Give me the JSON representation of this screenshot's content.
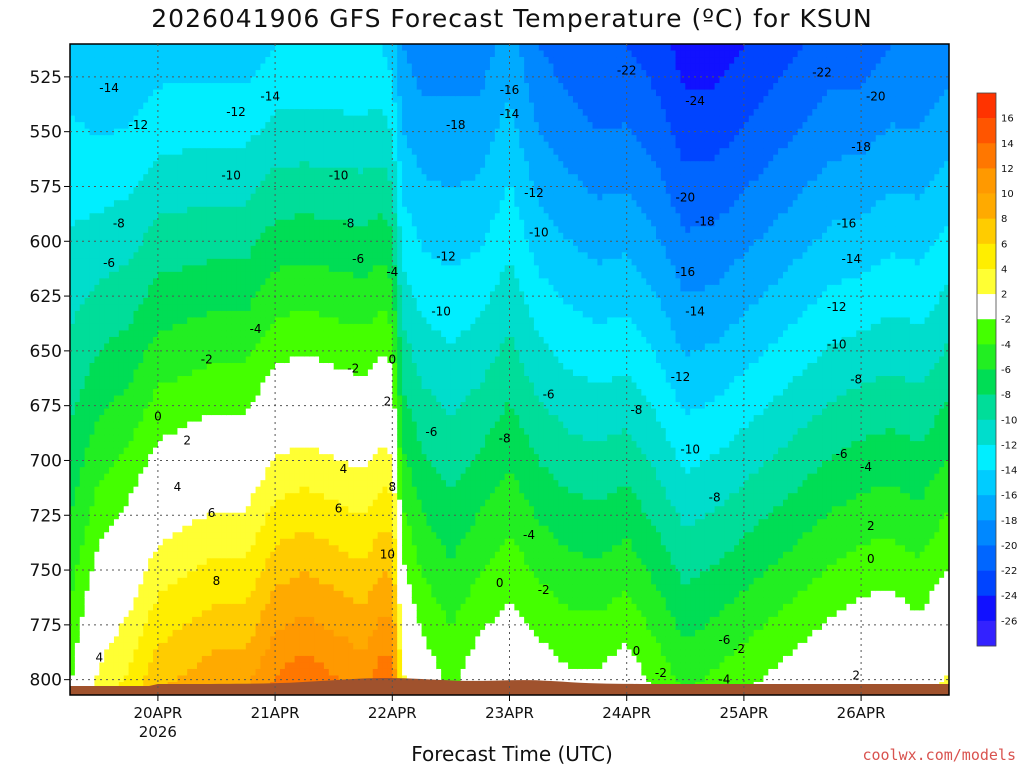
{
  "chart_data": {
    "type": "heatmap",
    "title": "2026041906 GFS Forecast Temperature (ºC) for KSUN",
    "xlabel": "Forecast Time (UTC)",
    "ylabel": "",
    "credit": "coolwx.com/models",
    "x_ticks": [
      {
        "t": 24,
        "label": "20APR",
        "sub": "2026"
      },
      {
        "t": 48,
        "label": "21APR",
        "sub": ""
      },
      {
        "t": 72,
        "label": "22APR",
        "sub": ""
      },
      {
        "t": 96,
        "label": "23APR",
        "sub": ""
      },
      {
        "t": 120,
        "label": "24APR",
        "sub": ""
      },
      {
        "t": 144,
        "label": "25APR",
        "sub": ""
      },
      {
        "t": 168,
        "label": "26APR",
        "sub": ""
      }
    ],
    "xlim_hours_from_2026041900": [
      6,
      186
    ],
    "y_ticks": [
      525,
      550,
      575,
      600,
      625,
      650,
      675,
      700,
      725,
      750,
      775,
      800
    ],
    "ylim_hpa": [
      807,
      510
    ],
    "colorbar": {
      "levels": [
        16,
        14,
        12,
        10,
        8,
        6,
        4,
        2,
        -2,
        -4,
        -6,
        -8,
        -10,
        -12,
        -14,
        -16,
        -18,
        -20,
        -22,
        -24,
        -26
      ],
      "colors": [
        "#ff3300",
        "#ff5500",
        "#ff7700",
        "#ff9900",
        "#ffaa00",
        "#ffcc00",
        "#ffee00",
        "#ffff33",
        "#ffffff",
        "#44ff00",
        "#22ee22",
        "#00dd55",
        "#00dd99",
        "#00ddcc",
        "#00eeff",
        "#00ccff",
        "#00aaff",
        "#0088ff",
        "#0066ff",
        "#0044ff",
        "#1111ff",
        "#3322ff"
      ]
    },
    "profiles": [
      {
        "t": 6,
        "top": -15,
        "bottom": -2
      },
      {
        "t": 12,
        "top": -16,
        "bottom": 3
      },
      {
        "t": 18,
        "top": -16,
        "bottom": 5
      },
      {
        "t": 24,
        "top": -15,
        "bottom": 8
      },
      {
        "t": 30,
        "top": -15,
        "bottom": 9
      },
      {
        "t": 36,
        "top": -15,
        "bottom": 10
      },
      {
        "t": 42,
        "top": -15,
        "bottom": 10
      },
      {
        "t": 48,
        "top": -14,
        "bottom": 13
      },
      {
        "t": 54,
        "top": -14,
        "bottom": 14
      },
      {
        "t": 60,
        "top": -14,
        "bottom": 13
      },
      {
        "t": 66,
        "top": -14,
        "bottom": 12
      },
      {
        "t": 70,
        "top": -14,
        "bottom": 14
      },
      {
        "t": 72,
        "top": -15,
        "bottom": 14
      },
      {
        "t": 74,
        "top": -18,
        "bottom": 3
      },
      {
        "t": 78,
        "top": -19,
        "bottom": 0
      },
      {
        "t": 84,
        "top": -19,
        "bottom": -2
      },
      {
        "t": 90,
        "top": -19,
        "bottom": 0
      },
      {
        "t": 96,
        "top": -17,
        "bottom": 1
      },
      {
        "t": 102,
        "top": -20,
        "bottom": 0
      },
      {
        "t": 108,
        "top": -21,
        "bottom": -1
      },
      {
        "t": 114,
        "top": -22,
        "bottom": -1
      },
      {
        "t": 120,
        "top": -22,
        "bottom": 0
      },
      {
        "t": 126,
        "top": -23,
        "bottom": -2
      },
      {
        "t": 132,
        "top": -25,
        "bottom": -4
      },
      {
        "t": 138,
        "top": -25,
        "bottom": -3
      },
      {
        "t": 144,
        "top": -24,
        "bottom": -2
      },
      {
        "t": 150,
        "top": -23,
        "bottom": -1
      },
      {
        "t": 156,
        "top": -22,
        "bottom": 0
      },
      {
        "t": 162,
        "top": -21,
        "bottom": 1
      },
      {
        "t": 168,
        "top": -21,
        "bottom": 2
      },
      {
        "t": 174,
        "top": -20,
        "bottom": 2
      },
      {
        "t": 180,
        "top": -20,
        "bottom": 1
      },
      {
        "t": 186,
        "top": -19,
        "bottom": 3
      }
    ],
    "contour_labels": [
      {
        "t": 14,
        "p": 530,
        "v": "-14"
      },
      {
        "t": 47,
        "p": 534,
        "v": "-14"
      },
      {
        "t": 20,
        "p": 547,
        "v": "-12"
      },
      {
        "t": 39,
        "p": 570,
        "v": "-10"
      },
      {
        "t": 16,
        "p": 592,
        "v": "-8"
      },
      {
        "t": 14,
        "p": 610,
        "v": "-6"
      },
      {
        "t": 40,
        "p": 541,
        "v": "-12"
      },
      {
        "t": 61,
        "p": 570,
        "v": "-10"
      },
      {
        "t": 63,
        "p": 592,
        "v": "-8"
      },
      {
        "t": 65,
        "p": 608,
        "v": "-6"
      },
      {
        "t": 72,
        "p": 614,
        "v": "-4"
      },
      {
        "t": 44,
        "p": 640,
        "v": "-4"
      },
      {
        "t": 34,
        "p": 654,
        "v": "-2"
      },
      {
        "t": 64,
        "p": 658,
        "v": "-2"
      },
      {
        "t": 72,
        "p": 654,
        "v": "0"
      },
      {
        "t": 24,
        "p": 680,
        "v": "0"
      },
      {
        "t": 30,
        "p": 691,
        "v": "2"
      },
      {
        "t": 71,
        "p": 673,
        "v": "2"
      },
      {
        "t": 28,
        "p": 712,
        "v": "4"
      },
      {
        "t": 62,
        "p": 704,
        "v": "4"
      },
      {
        "t": 35,
        "p": 724,
        "v": "6"
      },
      {
        "t": 61,
        "p": 722,
        "v": "6"
      },
      {
        "t": 36,
        "p": 755,
        "v": "8"
      },
      {
        "t": 72,
        "p": 712,
        "v": "8"
      },
      {
        "t": 71,
        "p": 743,
        "v": "10"
      },
      {
        "t": 12,
        "p": 790,
        "v": "4"
      },
      {
        "t": 96,
        "p": 531,
        "v": "-16"
      },
      {
        "t": 96,
        "p": 542,
        "v": "-14"
      },
      {
        "t": 85,
        "p": 547,
        "v": "-18"
      },
      {
        "t": 101,
        "p": 578,
        "v": "-12"
      },
      {
        "t": 102,
        "p": 596,
        "v": "-10"
      },
      {
        "t": 83,
        "p": 607,
        "v": "-12"
      },
      {
        "t": 82,
        "p": 632,
        "v": "-10"
      },
      {
        "t": 80,
        "p": 687,
        "v": "-6"
      },
      {
        "t": 95,
        "p": 690,
        "v": "-8"
      },
      {
        "t": 104,
        "p": 670,
        "v": "-6"
      },
      {
        "t": 100,
        "p": 734,
        "v": "-4"
      },
      {
        "t": 103,
        "p": 759,
        "v": "-2"
      },
      {
        "t": 94,
        "p": 756,
        "v": "0"
      },
      {
        "t": 120,
        "p": 522,
        "v": "-22"
      },
      {
        "t": 134,
        "p": 536,
        "v": "-24"
      },
      {
        "t": 160,
        "p": 523,
        "v": "-22"
      },
      {
        "t": 171,
        "p": 534,
        "v": "-20"
      },
      {
        "t": 168,
        "p": 557,
        "v": "-18"
      },
      {
        "t": 132,
        "p": 580,
        "v": "-20"
      },
      {
        "t": 136,
        "p": 591,
        "v": "-18"
      },
      {
        "t": 132,
        "p": 614,
        "v": "-16"
      },
      {
        "t": 134,
        "p": 632,
        "v": "-14"
      },
      {
        "t": 131,
        "p": 662,
        "v": "-12"
      },
      {
        "t": 165,
        "p": 592,
        "v": "-16"
      },
      {
        "t": 166,
        "p": 608,
        "v": "-14"
      },
      {
        "t": 163,
        "p": 630,
        "v": "-12"
      },
      {
        "t": 163,
        "p": 647,
        "v": "-10"
      },
      {
        "t": 167,
        "p": 663,
        "v": "-8"
      },
      {
        "t": 122,
        "p": 677,
        "v": "-8"
      },
      {
        "t": 133,
        "p": 695,
        "v": "-10"
      },
      {
        "t": 138,
        "p": 717,
        "v": "-8"
      },
      {
        "t": 164,
        "p": 697,
        "v": "-6"
      },
      {
        "t": 169,
        "p": 703,
        "v": "-4"
      },
      {
        "t": 170,
        "p": 730,
        "v": "2"
      },
      {
        "t": 170,
        "p": 745,
        "v": "0"
      },
      {
        "t": 140,
        "p": 782,
        "v": "-6"
      },
      {
        "t": 143,
        "p": 786,
        "v": "-2"
      },
      {
        "t": 140,
        "p": 800,
        "v": "-4"
      },
      {
        "t": 122,
        "p": 787,
        "v": "0"
      },
      {
        "t": 127,
        "p": 797,
        "v": "-2"
      },
      {
        "t": 167,
        "p": 798,
        "v": "2"
      }
    ]
  }
}
